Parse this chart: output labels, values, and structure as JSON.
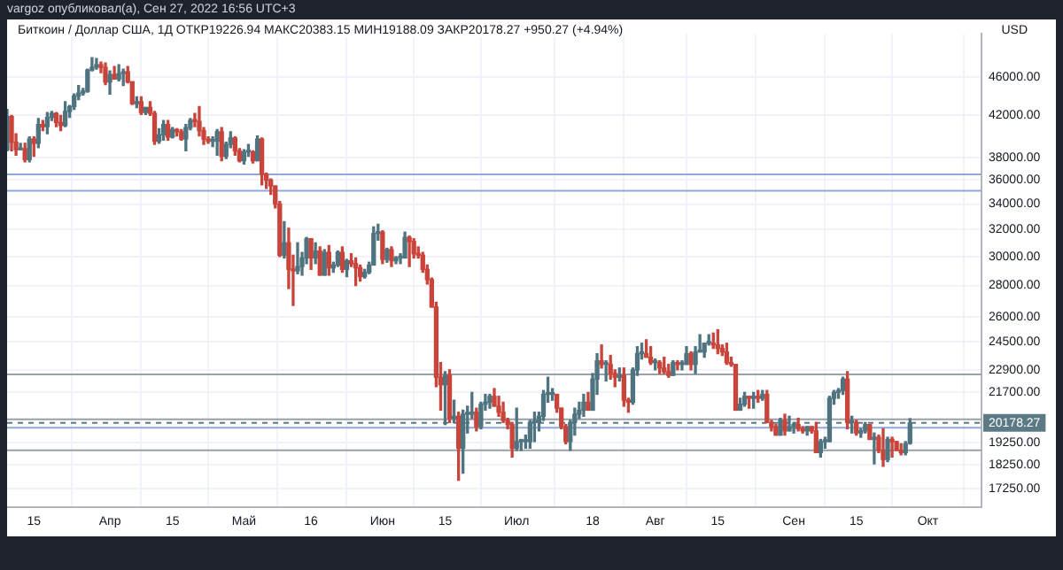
{
  "chart_data": {
    "type": "candlestick",
    "title": "Биткоин / Доллар США, 1Д  ОТКР19226.94  МАКС20383.15  МИН19188.09  ЗАКР20178.27  +950.27 (+4.94%)",
    "subtitle": "vargoz опубликовал(а), Сен 27, 2022 16:56 UTC+3",
    "ylabel": "USD",
    "colors": [
      "#4f7480",
      "#c9443a",
      "#c9443a",
      "#4f7480",
      "#c9443a",
      "#4f7480",
      "#c9443a",
      "#4f7480",
      "#c9443a",
      "#4f7480",
      "#4f7480",
      "#c9443a",
      "#c9443a",
      "#4f7480",
      "#4f7480",
      "#4f7480",
      "#4f7480",
      "#4f7480",
      "#4f7480",
      "#4f7480",
      "#4f7480",
      "#c9443a",
      "#c9443a",
      "#4f7480",
      "#c9443a",
      "#4f7480",
      "#4f7480",
      "#c9443a",
      "#c9443a",
      "#4f7480",
      "#c9443a",
      "#4f7480",
      "#c9443a",
      "#c9443a",
      "#4f7480",
      "#4f7480",
      "#c9443a",
      "#4f7480",
      "#c9443a",
      "#c9443a",
      "#4f7480",
      "#4f7480",
      "#c9443a",
      "#c9443a",
      "#c9443a",
      "#c9443a",
      "#4f7480",
      "#4f7480",
      "#c9443a",
      "#4f7480",
      "#4f7480",
      "#c9443a",
      "#c9443a",
      "#4f7480",
      "#4f7480",
      "#c9443a",
      "#4f7480",
      "#c9443a",
      "#c9443a",
      "#c9443a",
      "#c9443a",
      "#c9443a",
      "#4f7480",
      "#c9443a",
      "#c9443a",
      "#4f7480",
      "#4f7480",
      "#4f7480",
      "#c9443a",
      "#4f7480",
      "#c9443a",
      "#4f7480",
      "#c9443a",
      "#4f7480",
      "#4f7480",
      "#c9443a",
      "#4f7480",
      "#c9443a",
      "#c9443a",
      "#c9443a",
      "#4f7480",
      "#4f7480",
      "#4f7480",
      "#4f7480",
      "#c9443a",
      "#4f7480",
      "#c9443a",
      "#4f7480",
      "#4f7480",
      "#4f7480",
      "#c9443a",
      "#c9443a",
      "#c9443a",
      "#c9443a",
      "#c9443a",
      "#c9443a",
      "#c9443a",
      "#c9443a",
      "#4f7480",
      "#c9443a",
      "#4f7480",
      "#c9443a",
      "#4f7480",
      "#4f7480",
      "#4f7480",
      "#c9443a",
      "#4f7480",
      "#4f7480",
      "#4f7480",
      "#c9443a",
      "#c9443a",
      "#c9443a",
      "#c9443a",
      "#c9443a",
      "#4f7480",
      "#4f7480",
      "#4f7480",
      "#4f7480",
      "#4f7480",
      "#4f7480",
      "#4f7480",
      "#4f7480",
      "#4f7480",
      "#c9443a",
      "#c9443a",
      "#c9443a",
      "#4f7480",
      "#4f7480",
      "#4f7480",
      "#4f7480",
      "#c9443a",
      "#4f7480",
      "#4f7480",
      "#c9443a",
      "#4f7480",
      "#c9443a",
      "#c9443a",
      "#4f7480",
      "#c9443a",
      "#c9443a",
      "#4f7480",
      "#4f7480",
      "#4f7480",
      "#c9443a",
      "#c9443a",
      "#4f7480",
      "#c9443a",
      "#c9443a",
      "#c9443a",
      "#4f7480",
      "#c9443a",
      "#4f7480",
      "#4f7480",
      "#c9443a",
      "#4f7480",
      "#4f7480",
      "#4f7480",
      "#4f7480",
      "#c9443a",
      "#c9443a",
      "#c9443a",
      "#c9443a",
      "#c9443a",
      "#c9443a",
      "#4f7480",
      "#4f7480",
      "#c9443a",
      "#4f7480",
      "#c9443a",
      "#4f7480",
      "#c9443a",
      "#c9443a",
      "#c9443a",
      "#4f7480",
      "#c9443a",
      "#4f7480",
      "#4f7480",
      "#c9443a",
      "#c9443a",
      "#4f7480",
      "#c9443a",
      "#c9443a",
      "#4f7480",
      "#4f7480",
      "#4f7480",
      "#4f7480",
      "#4f7480",
      "#4f7480",
      "#c9443a",
      "#4f7480",
      "#c9443a",
      "#4f7480",
      "#4f7480",
      "#c9443a",
      "#4f7480",
      "#c9443a",
      "#c9443a",
      "#4f7480",
      "#c9443a",
      "#c9443a",
      "#c9443a",
      "#4f7480",
      "#4f7480"
    ],
    "log": true,
    "grid": true,
    "legend": false,
    "xlim": [
      "2022-03-09",
      "2022-10-13"
    ],
    "xticks": [
      {
        "value": "2022-03-15",
        "label": "15"
      },
      {
        "value": "2022-04-01",
        "label": "Апр"
      },
      {
        "value": "2022-04-15",
        "label": "15"
      },
      {
        "value": "2022-05-01",
        "label": "Май"
      },
      {
        "value": "2022-05-16",
        "label": "16"
      },
      {
        "value": "2022-06-01",
        "label": "Июн"
      },
      {
        "value": "2022-06-15",
        "label": "15"
      },
      {
        "value": "2022-07-01",
        "label": "Июл"
      },
      {
        "value": "2022-07-18",
        "label": "18"
      },
      {
        "value": "2022-08-01",
        "label": "Авг"
      },
      {
        "value": "2022-08-15",
        "label": "15"
      },
      {
        "value": "2022-09-01",
        "label": "Сен"
      },
      {
        "value": "2022-09-15",
        "label": "15"
      },
      {
        "value": "2022-10-01",
        "label": "Окт"
      }
    ],
    "ylim": [
      16500,
      51000
    ],
    "yticks": [
      {
        "value": 17250,
        "label": "17250.00"
      },
      {
        "value": 18250,
        "label": "18250.00"
      },
      {
        "value": 19250,
        "label": "19250.00"
      },
      {
        "value": 21700,
        "label": "21700.00"
      },
      {
        "value": 22900,
        "label": "22900.00"
      },
      {
        "value": 24500,
        "label": "24500.00"
      },
      {
        "value": 26000,
        "label": "26000.00"
      },
      {
        "value": 28000,
        "label": "28000.00"
      },
      {
        "value": 30000,
        "label": "30000.00"
      },
      {
        "value": 32000,
        "label": "32000.00"
      },
      {
        "value": 34000,
        "label": "34000.00"
      },
      {
        "value": 36000,
        "label": "36000.00"
      },
      {
        "value": 38000,
        "label": "38000.00"
      },
      {
        "value": 42000,
        "label": "42000.00"
      },
      {
        "value": 46000,
        "label": "46000.00"
      }
    ],
    "ref_lines": [
      {
        "axis": "y",
        "value": 36500,
        "color": "#8fa9d8"
      },
      {
        "axis": "y",
        "value": 35100,
        "color": "#8fa9d8"
      },
      {
        "axis": "y",
        "value": 22650,
        "color": "#9aa0a8"
      },
      {
        "axis": "y",
        "value": 20350,
        "color": "#9aa0a8"
      },
      {
        "axis": "y",
        "value": 19950,
        "color": "#8fa9d8"
      },
      {
        "axis": "y",
        "value": 18900,
        "color": "#9aa0a8"
      },
      {
        "axis": "y",
        "value": 20178.27,
        "label": "20178.27",
        "color": "#5b7a86",
        "line_style": "dashed"
      }
    ],
    "x": [
      "2022-03-09",
      "2022-03-10",
      "2022-03-11",
      "2022-03-12",
      "2022-03-13",
      "2022-03-14",
      "2022-03-15",
      "2022-03-16",
      "2022-03-17",
      "2022-03-18",
      "2022-03-19",
      "2022-03-20",
      "2022-03-21",
      "2022-03-22",
      "2022-03-23",
      "2022-03-24",
      "2022-03-25",
      "2022-03-26",
      "2022-03-27",
      "2022-03-28",
      "2022-03-29",
      "2022-03-30",
      "2022-03-31",
      "2022-04-01",
      "2022-04-02",
      "2022-04-03",
      "2022-04-04",
      "2022-04-05",
      "2022-04-06",
      "2022-04-07",
      "2022-04-08",
      "2022-04-09",
      "2022-04-10",
      "2022-04-11",
      "2022-04-12",
      "2022-04-13",
      "2022-04-14",
      "2022-04-15",
      "2022-04-16",
      "2022-04-17",
      "2022-04-18",
      "2022-04-19",
      "2022-04-20",
      "2022-04-21",
      "2022-04-22",
      "2022-04-23",
      "2022-04-24",
      "2022-04-25",
      "2022-04-26",
      "2022-04-27",
      "2022-04-28",
      "2022-04-29",
      "2022-04-30",
      "2022-05-01",
      "2022-05-02",
      "2022-05-03",
      "2022-05-04",
      "2022-05-05",
      "2022-05-06",
      "2022-05-07",
      "2022-05-08",
      "2022-05-09",
      "2022-05-10",
      "2022-05-11",
      "2022-05-12",
      "2022-05-13",
      "2022-05-14",
      "2022-05-15",
      "2022-05-16",
      "2022-05-17",
      "2022-05-18",
      "2022-05-19",
      "2022-05-20",
      "2022-05-21",
      "2022-05-22",
      "2022-05-23",
      "2022-05-24",
      "2022-05-25",
      "2022-05-26",
      "2022-05-27",
      "2022-05-28",
      "2022-05-29",
      "2022-05-30",
      "2022-05-31",
      "2022-06-01",
      "2022-06-02",
      "2022-06-03",
      "2022-06-04",
      "2022-06-05",
      "2022-06-06",
      "2022-06-07",
      "2022-06-08",
      "2022-06-09",
      "2022-06-10",
      "2022-06-11",
      "2022-06-12",
      "2022-06-13",
      "2022-06-14",
      "2022-06-15",
      "2022-06-16",
      "2022-06-17",
      "2022-06-18",
      "2022-06-19",
      "2022-06-20",
      "2022-06-21",
      "2022-06-22",
      "2022-06-23",
      "2022-06-24",
      "2022-06-25",
      "2022-06-26",
      "2022-06-27",
      "2022-06-28",
      "2022-06-29",
      "2022-06-30",
      "2022-07-01",
      "2022-07-02",
      "2022-07-03",
      "2022-07-04",
      "2022-07-05",
      "2022-07-06",
      "2022-07-07",
      "2022-07-08",
      "2022-07-09",
      "2022-07-10",
      "2022-07-11",
      "2022-07-12",
      "2022-07-13",
      "2022-07-14",
      "2022-07-15",
      "2022-07-16",
      "2022-07-17",
      "2022-07-18",
      "2022-07-19",
      "2022-07-20",
      "2022-07-21",
      "2022-07-22",
      "2022-07-23",
      "2022-07-24",
      "2022-07-25",
      "2022-07-26",
      "2022-07-27",
      "2022-07-28",
      "2022-07-29",
      "2022-07-30",
      "2022-07-31",
      "2022-08-01",
      "2022-08-02",
      "2022-08-03",
      "2022-08-04",
      "2022-08-05",
      "2022-08-06",
      "2022-08-07",
      "2022-08-08",
      "2022-08-09",
      "2022-08-10",
      "2022-08-11",
      "2022-08-12",
      "2022-08-13",
      "2022-08-14",
      "2022-08-15",
      "2022-08-16",
      "2022-08-17",
      "2022-08-18",
      "2022-08-19",
      "2022-08-20",
      "2022-08-21",
      "2022-08-22",
      "2022-08-23",
      "2022-08-24",
      "2022-08-25",
      "2022-08-26",
      "2022-08-27",
      "2022-08-28",
      "2022-08-29",
      "2022-08-30",
      "2022-08-31",
      "2022-09-01",
      "2022-09-02",
      "2022-09-03",
      "2022-09-04",
      "2022-09-05",
      "2022-09-06",
      "2022-09-07",
      "2022-09-08",
      "2022-09-09",
      "2022-09-10",
      "2022-09-11",
      "2022-09-12",
      "2022-09-13",
      "2022-09-14",
      "2022-09-15",
      "2022-09-16",
      "2022-09-17",
      "2022-09-18",
      "2022-09-19",
      "2022-09-20",
      "2022-09-21",
      "2022-09-22",
      "2022-09-23",
      "2022-09-24",
      "2022-09-25",
      "2022-09-26",
      "2022-09-27"
    ],
    "ohlc": [
      [
        38700,
        42600,
        38600,
        41900
      ],
      [
        41900,
        42000,
        38600,
        39400
      ],
      [
        39400,
        40200,
        38200,
        38700
      ],
      [
        38700,
        39300,
        38700,
        38800
      ],
      [
        38800,
        39300,
        37600,
        37800
      ],
      [
        37800,
        39900,
        37600,
        39700
      ],
      [
        39700,
        39900,
        38100,
        39300
      ],
      [
        39300,
        41700,
        38900,
        41100
      ],
      [
        41100,
        41500,
        40500,
        40900
      ],
      [
        40900,
        42300,
        40200,
        41800
      ],
      [
        41800,
        42400,
        41500,
        42200
      ],
      [
        42200,
        42300,
        40900,
        41300
      ],
      [
        41300,
        42000,
        40500,
        41000
      ],
      [
        41000,
        43400,
        40900,
        42400
      ],
      [
        42400,
        43000,
        41800,
        42900
      ],
      [
        42900,
        44200,
        42600,
        44000
      ],
      [
        44000,
        45100,
        43600,
        44300
      ],
      [
        44300,
        44800,
        44100,
        44500
      ],
      [
        44500,
        46900,
        44400,
        46800
      ],
      [
        46800,
        48200,
        46700,
        47100
      ],
      [
        47100,
        48100,
        46900,
        47400
      ],
      [
        47400,
        47700,
        46500,
        47100
      ],
      [
        47100,
        47600,
        45200,
        45500
      ],
      [
        45500,
        46700,
        44200,
        46300
      ],
      [
        46300,
        47200,
        45800,
        45800
      ],
      [
        45800,
        47400,
        45600,
        46400
      ],
      [
        46400,
        46900,
        45100,
        46600
      ],
      [
        46600,
        47200,
        45400,
        45500
      ],
      [
        45500,
        45500,
        43100,
        43200
      ],
      [
        43200,
        43900,
        42800,
        43400
      ],
      [
        43400,
        43900,
        42100,
        42300
      ],
      [
        42300,
        42800,
        42100,
        42800
      ],
      [
        42800,
        43400,
        42000,
        42200
      ],
      [
        42200,
        42400,
        39200,
        39500
      ],
      [
        39500,
        40700,
        39300,
        40100
      ],
      [
        40100,
        41500,
        39600,
        41100
      ],
      [
        41100,
        41500,
        39600,
        39900
      ],
      [
        39900,
        40800,
        39800,
        40600
      ],
      [
        40600,
        40700,
        40000,
        40400
      ],
      [
        40400,
        40600,
        39600,
        39700
      ],
      [
        39700,
        41100,
        38600,
        40800
      ],
      [
        40800,
        41700,
        40600,
        41500
      ],
      [
        41500,
        42200,
        40900,
        41400
      ],
      [
        41400,
        42900,
        40000,
        40500
      ],
      [
        40500,
        40800,
        39200,
        39700
      ],
      [
        39700,
        39900,
        39300,
        39500
      ],
      [
        39500,
        39900,
        39000,
        39500
      ],
      [
        39500,
        40600,
        38200,
        40400
      ],
      [
        40400,
        40800,
        37700,
        38100
      ],
      [
        38100,
        39400,
        37900,
        39200
      ],
      [
        39200,
        40400,
        38900,
        39800
      ],
      [
        39800,
        39900,
        38200,
        38600
      ],
      [
        38600,
        38800,
        37600,
        37700
      ],
      [
        37700,
        38700,
        37400,
        38500
      ],
      [
        38500,
        39200,
        38100,
        38500
      ],
      [
        38500,
        38600,
        37500,
        37700
      ],
      [
        37700,
        40000,
        37700,
        39700
      ],
      [
        39700,
        39800,
        35600,
        36500
      ],
      [
        36500,
        36600,
        35300,
        36000
      ],
      [
        36000,
        36100,
        34800,
        35500
      ],
      [
        35500,
        35500,
        33700,
        34000
      ],
      [
        34000,
        34200,
        30000,
        30100
      ],
      [
        30100,
        32600,
        29900,
        31000
      ],
      [
        31000,
        32100,
        27800,
        29100
      ],
      [
        29100,
        30100,
        26700,
        29000
      ],
      [
        29000,
        31000,
        28800,
        29300
      ],
      [
        29300,
        30300,
        28700,
        29900
      ],
      [
        29900,
        31400,
        29500,
        31300
      ],
      [
        31300,
        31300,
        29100,
        29900
      ],
      [
        29900,
        31000,
        29500,
        30400
      ],
      [
        30400,
        30700,
        28700,
        28700
      ],
      [
        28700,
        30500,
        28700,
        30300
      ],
      [
        30300,
        30800,
        28700,
        29200
      ],
      [
        29200,
        29600,
        28900,
        29400
      ],
      [
        29400,
        30400,
        29300,
        30300
      ],
      [
        30300,
        30700,
        28900,
        29100
      ],
      [
        29100,
        29800,
        28600,
        29700
      ],
      [
        29700,
        30200,
        29300,
        29500
      ],
      [
        29500,
        29900,
        28000,
        29200
      ],
      [
        29200,
        29400,
        28300,
        28600
      ],
      [
        28600,
        29100,
        28500,
        28900
      ],
      [
        28900,
        29600,
        28800,
        29400
      ],
      [
        29400,
        32200,
        29400,
        31700
      ],
      [
        31700,
        32400,
        31200,
        31800
      ],
      [
        31800,
        31900,
        29500,
        29800
      ],
      [
        29800,
        30600,
        29600,
        30500
      ],
      [
        30500,
        30700,
        29300,
        29700
      ],
      [
        29700,
        30000,
        29500,
        29900
      ],
      [
        29900,
        30200,
        29500,
        29900
      ],
      [
        29900,
        31800,
        29900,
        31400
      ],
      [
        31400,
        31500,
        29300,
        31100
      ],
      [
        31100,
        31300,
        29900,
        30200
      ],
      [
        30200,
        30700,
        29900,
        30100
      ],
      [
        30100,
        30300,
        28900,
        29100
      ],
      [
        29100,
        29400,
        28100,
        28400
      ],
      [
        28400,
        28500,
        26600,
        26600
      ],
      [
        26600,
        26900,
        22000,
        22500
      ],
      [
        22500,
        23300,
        20800,
        22100
      ],
      [
        22100,
        22800,
        20100,
        22600
      ],
      [
        22600,
        22900,
        20200,
        20400
      ],
      [
        20400,
        21300,
        20200,
        20500
      ],
      [
        20500,
        20700,
        17600,
        19000
      ],
      [
        19000,
        20800,
        17900,
        20600
      ],
      [
        20600,
        21000,
        19700,
        20600
      ],
      [
        20600,
        21700,
        20400,
        20700
      ],
      [
        20700,
        20900,
        19800,
        20000
      ],
      [
        20000,
        21200,
        19900,
        21100
      ],
      [
        21100,
        21600,
        20800,
        21200
      ],
      [
        21200,
        21600,
        20900,
        21500
      ],
      [
        21500,
        21900,
        21000,
        21000
      ],
      [
        21000,
        21500,
        20500,
        20700
      ],
      [
        20700,
        21200,
        20200,
        20300
      ],
      [
        20300,
        20400,
        19900,
        20100
      ],
      [
        20100,
        20200,
        18600,
        19000
      ],
      [
        19000,
        20900,
        18900,
        19300
      ],
      [
        19300,
        19400,
        18900,
        19300
      ],
      [
        19300,
        19600,
        19000,
        19300
      ],
      [
        19300,
        20300,
        19000,
        20200
      ],
      [
        20200,
        20700,
        19300,
        20200
      ],
      [
        20200,
        20700,
        19800,
        20500
      ],
      [
        20500,
        21800,
        20300,
        21600
      ],
      [
        21600,
        22500,
        21200,
        21600
      ],
      [
        21600,
        21900,
        21300,
        21600
      ],
      [
        21600,
        21600,
        20700,
        20900
      ],
      [
        20900,
        20900,
        19900,
        20000
      ],
      [
        20000,
        20100,
        19200,
        19300
      ],
      [
        19300,
        20300,
        18900,
        20200
      ],
      [
        20200,
        20900,
        19600,
        20600
      ],
      [
        20600,
        21200,
        20400,
        20800
      ],
      [
        20800,
        21600,
        20500,
        21200
      ],
      [
        21200,
        21700,
        20800,
        20800
      ],
      [
        20800,
        22700,
        20800,
        22400
      ],
      [
        22400,
        23800,
        21600,
        23400
      ],
      [
        23400,
        24300,
        23000,
        23200
      ],
      [
        23200,
        23400,
        22300,
        23200
      ],
      [
        23200,
        23700,
        22400,
        22700
      ],
      [
        22700,
        22900,
        22000,
        22500
      ],
      [
        22500,
        23000,
        22300,
        22600
      ],
      [
        22600,
        23000,
        21000,
        21300
      ],
      [
        21300,
        21400,
        20700,
        21200
      ],
      [
        21200,
        23000,
        21100,
        22900
      ],
      [
        22900,
        24200,
        22600,
        23800
      ],
      [
        23800,
        24400,
        23500,
        23800
      ],
      [
        23800,
        24600,
        23600,
        23600
      ],
      [
        23600,
        24200,
        23200,
        23300
      ],
      [
        23300,
        23500,
        22900,
        23300
      ],
      [
        23300,
        23400,
        22700,
        23000
      ],
      [
        23000,
        23600,
        22700,
        22800
      ],
      [
        22800,
        23200,
        22500,
        22600
      ],
      [
        22600,
        23400,
        22600,
        23300
      ],
      [
        23300,
        23400,
        22900,
        23200
      ],
      [
        23200,
        23400,
        22900,
        23200
      ],
      [
        23200,
        24200,
        23200,
        23800
      ],
      [
        23800,
        23900,
        22900,
        23200
      ],
      [
        23200,
        24200,
        22700,
        23900
      ],
      [
        23900,
        24900,
        23900,
        23900
      ],
      [
        23900,
        24400,
        23600,
        24400
      ],
      [
        24400,
        24900,
        24300,
        24400
      ],
      [
        24400,
        25000,
        24100,
        24300
      ],
      [
        24300,
        25200,
        23800,
        24100
      ],
      [
        24100,
        24300,
        23700,
        23900
      ],
      [
        23900,
        24400,
        23200,
        23300
      ],
      [
        23300,
        23600,
        23100,
        23200
      ],
      [
        23200,
        23200,
        20800,
        20800
      ],
      [
        20800,
        21400,
        20800,
        21100
      ],
      [
        21100,
        21700,
        21000,
        21500
      ],
      [
        21500,
        21500,
        20900,
        21400
      ],
      [
        21400,
        21700,
        20900,
        21500
      ],
      [
        21500,
        21800,
        21200,
        21400
      ],
      [
        21400,
        21800,
        21300,
        21600
      ],
      [
        21600,
        21800,
        20200,
        20200
      ],
      [
        20200,
        20300,
        19800,
        20000
      ],
      [
        20000,
        20100,
        19600,
        19600
      ],
      [
        19600,
        20400,
        19600,
        20300
      ],
      [
        20300,
        20600,
        19600,
        19800
      ],
      [
        19800,
        20500,
        19800,
        20000
      ],
      [
        20000,
        20200,
        19700,
        20100
      ],
      [
        20100,
        20400,
        19800,
        19900
      ],
      [
        19900,
        20000,
        19700,
        19800
      ],
      [
        19800,
        20000,
        19600,
        20000
      ],
      [
        20000,
        20000,
        19700,
        19800
      ],
      [
        19800,
        20200,
        18800,
        18800
      ],
      [
        18800,
        19400,
        18600,
        19300
      ],
      [
        19300,
        19500,
        19000,
        19300
      ],
      [
        19300,
        21500,
        19300,
        21400
      ],
      [
        21400,
        21800,
        21100,
        21700
      ],
      [
        21700,
        21900,
        21400,
        21800
      ],
      [
        21800,
        22500,
        21600,
        22400
      ],
      [
        22400,
        22800,
        19900,
        20200
      ],
      [
        20200,
        20500,
        19700,
        20200
      ],
      [
        20200,
        20300,
        19600,
        19700
      ],
      [
        19700,
        19900,
        19500,
        19800
      ],
      [
        19800,
        20200,
        19700,
        20100
      ],
      [
        20100,
        20100,
        19400,
        19400
      ],
      [
        19400,
        19700,
        18300,
        19500
      ],
      [
        19500,
        19600,
        18800,
        18900
      ],
      [
        18900,
        19900,
        18200,
        18500
      ],
      [
        18500,
        19500,
        18400,
        19400
      ],
      [
        19400,
        19500,
        18600,
        19300
      ],
      [
        19300,
        19300,
        18900,
        18900
      ],
      [
        18900,
        19200,
        18700,
        18800
      ],
      [
        18800,
        19300,
        18700,
        19200
      ],
      [
        19226.94,
        20383.15,
        19188.09,
        20178.27
      ]
    ]
  }
}
